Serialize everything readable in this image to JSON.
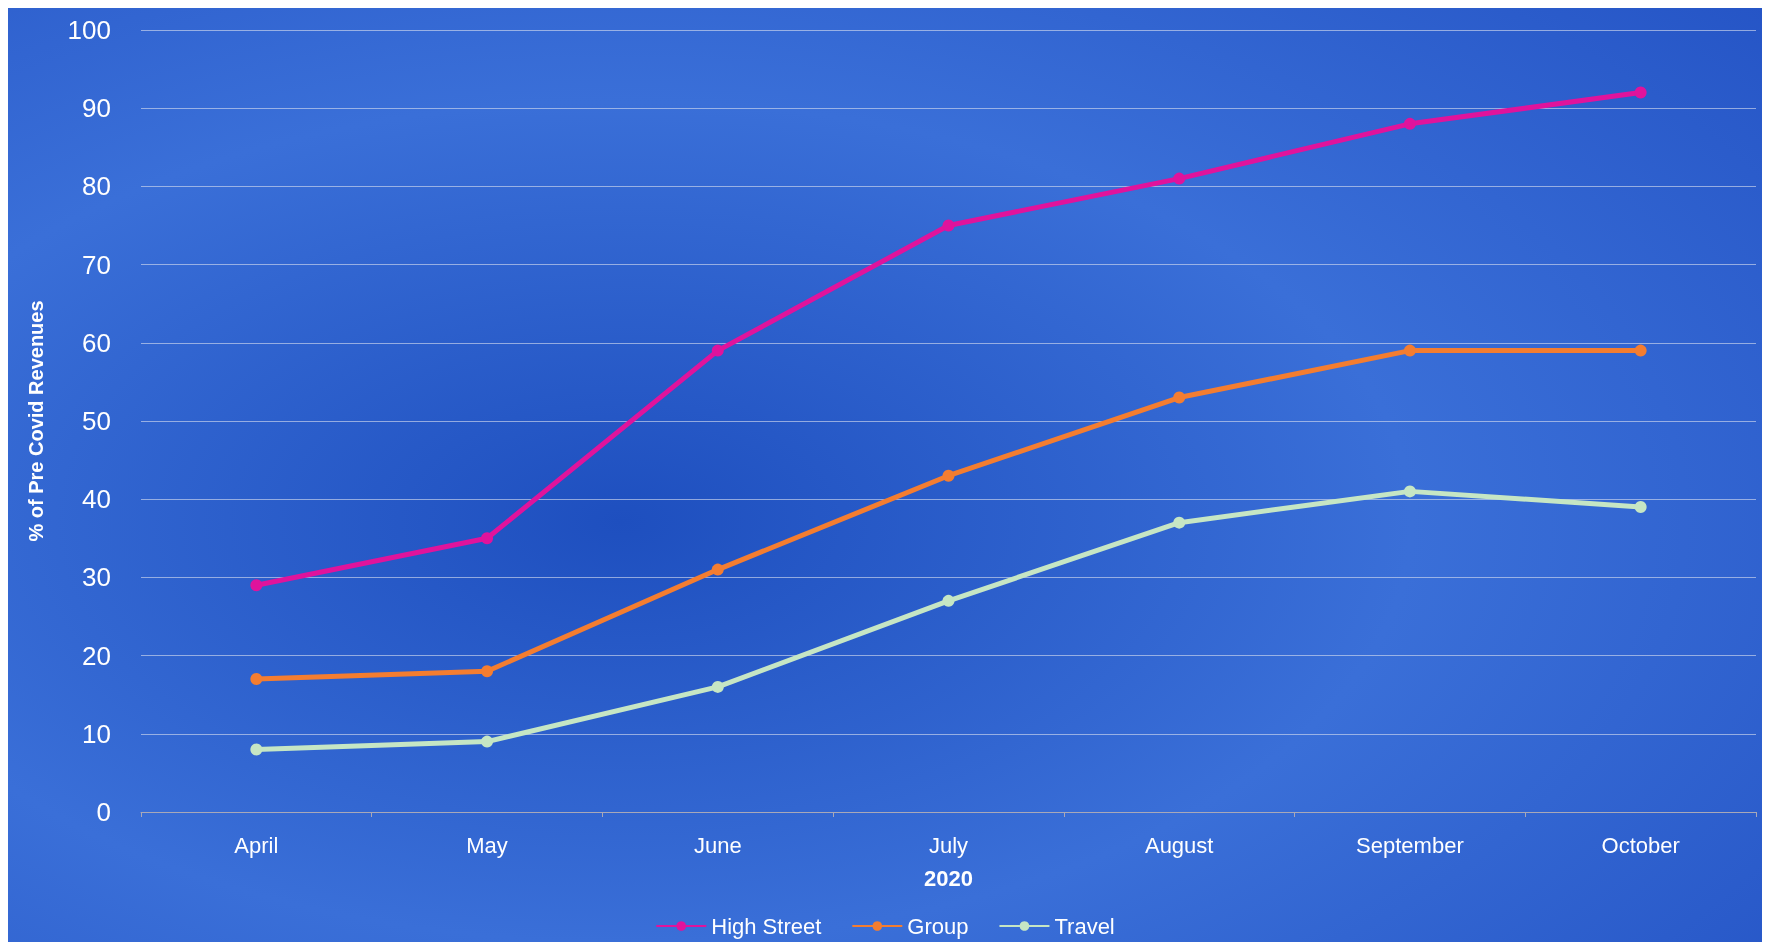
{
  "chart_data": {
    "type": "line",
    "xlabel": "2020",
    "ylabel": "% of Pre Covid Revenues",
    "categories": [
      "April",
      "May",
      "June",
      "July",
      "August",
      "September",
      "October"
    ],
    "series": [
      {
        "name": "High Street",
        "color": "#e0139c",
        "values": [
          29,
          35,
          59,
          75,
          81,
          88,
          92
        ]
      },
      {
        "name": "Group",
        "color": "#f47d30",
        "values": [
          17,
          18,
          31,
          43,
          53,
          59,
          59
        ]
      },
      {
        "name": "Travel",
        "color": "#c6e6c4",
        "values": [
          8,
          9,
          16,
          27,
          37,
          41,
          39
        ]
      }
    ],
    "ylim": [
      0,
      100
    ],
    "yticks": [
      0,
      10,
      20,
      30,
      40,
      50,
      60,
      70,
      80,
      90,
      100
    ],
    "grid": "y",
    "legend": "bottom",
    "marker": "circle",
    "line_style": "solid"
  }
}
